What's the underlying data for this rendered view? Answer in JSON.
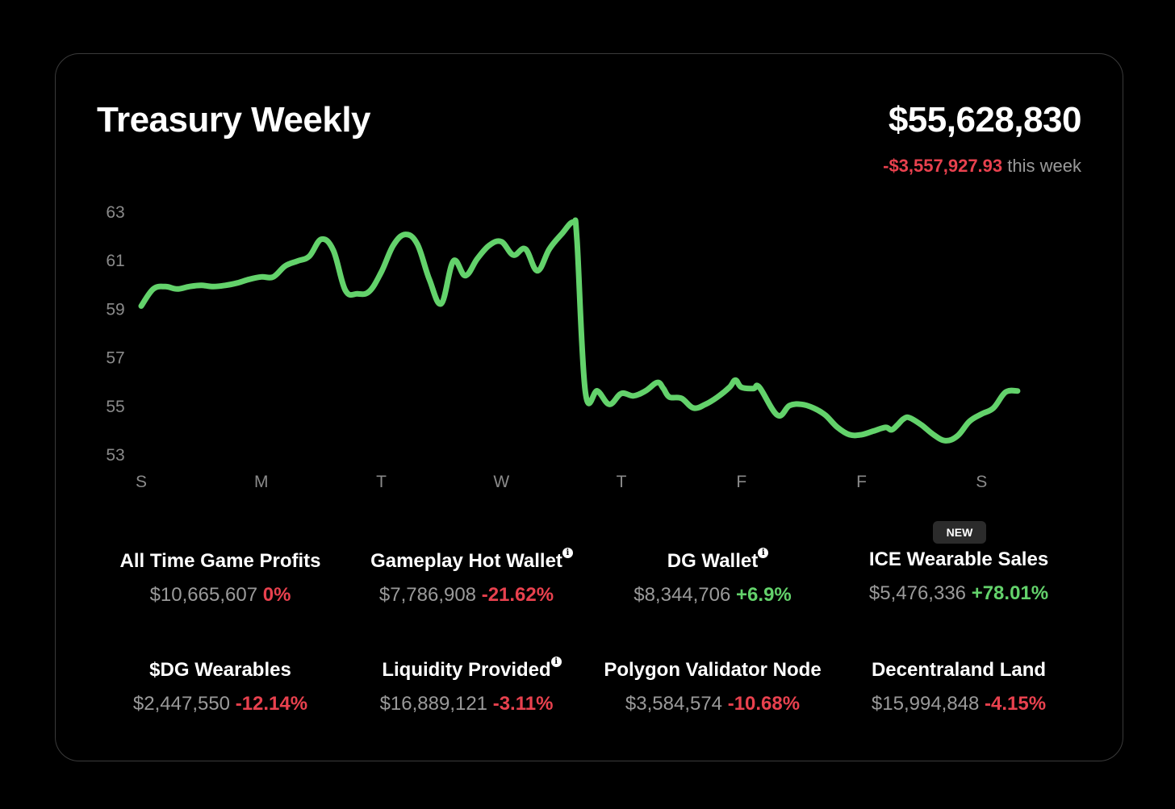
{
  "header": {
    "title": "Treasury Weekly",
    "total": "$55,628,830",
    "change_value": "-$3,557,927.93",
    "change_suffix": "this week"
  },
  "colors": {
    "background": "#000000",
    "line": "#63d26b",
    "negative": "#e8414e",
    "positive": "#63d26b",
    "axis_text": "#8a8a8a"
  },
  "chart_data": {
    "type": "line",
    "title": "Treasury Weekly",
    "xlabel": "",
    "ylabel": "",
    "ylim": [
      53,
      63
    ],
    "x_ticks": [
      "S",
      "M",
      "T",
      "W",
      "T",
      "F",
      "F",
      "S"
    ],
    "y_ticks": [
      63,
      61,
      59,
      57,
      55,
      53
    ],
    "grid": false,
    "legend": "none",
    "series": [
      {
        "values": [
          [
            0.0,
            59.1
          ],
          [
            0.1,
            59.8
          ],
          [
            0.2,
            59.9
          ],
          [
            0.3,
            59.8
          ],
          [
            0.4,
            59.9
          ],
          [
            0.5,
            59.95
          ],
          [
            0.6,
            59.9
          ],
          [
            0.7,
            59.95
          ],
          [
            0.8,
            60.05
          ],
          [
            0.9,
            60.2
          ],
          [
            1.0,
            60.3
          ],
          [
            1.1,
            60.3
          ],
          [
            1.2,
            60.75
          ],
          [
            1.3,
            60.95
          ],
          [
            1.4,
            61.15
          ],
          [
            1.5,
            61.85
          ],
          [
            1.6,
            61.4
          ],
          [
            1.7,
            59.75
          ],
          [
            1.8,
            59.6
          ],
          [
            1.9,
            59.7
          ],
          [
            2.0,
            60.5
          ],
          [
            2.1,
            61.6
          ],
          [
            2.2,
            62.05
          ],
          [
            2.3,
            61.65
          ],
          [
            2.4,
            60.2
          ],
          [
            2.5,
            59.2
          ],
          [
            2.6,
            60.95
          ],
          [
            2.7,
            60.35
          ],
          [
            2.8,
            61.05
          ],
          [
            2.9,
            61.6
          ],
          [
            3.0,
            61.75
          ],
          [
            3.1,
            61.2
          ],
          [
            3.2,
            61.45
          ],
          [
            3.3,
            60.55
          ],
          [
            3.4,
            61.45
          ],
          [
            3.5,
            62.05
          ],
          [
            3.6,
            62.55
          ],
          [
            3.63,
            61.8
          ],
          [
            3.7,
            55.55
          ],
          [
            3.8,
            55.6
          ],
          [
            3.9,
            55.05
          ],
          [
            4.0,
            55.5
          ],
          [
            4.1,
            55.4
          ],
          [
            4.2,
            55.6
          ],
          [
            4.3,
            55.95
          ],
          [
            4.35,
            55.7
          ],
          [
            4.4,
            55.35
          ],
          [
            4.5,
            55.3
          ],
          [
            4.6,
            54.9
          ],
          [
            4.7,
            55.05
          ],
          [
            4.8,
            55.35
          ],
          [
            4.9,
            55.75
          ],
          [
            4.95,
            56.05
          ],
          [
            5.0,
            55.75
          ],
          [
            5.1,
            55.7
          ],
          [
            5.15,
            55.75
          ],
          [
            5.3,
            54.6
          ],
          [
            5.4,
            55.0
          ],
          [
            5.5,
            55.05
          ],
          [
            5.6,
            54.9
          ],
          [
            5.7,
            54.6
          ],
          [
            5.8,
            54.1
          ],
          [
            5.9,
            53.8
          ],
          [
            6.0,
            53.8
          ],
          [
            6.1,
            53.95
          ],
          [
            6.2,
            54.1
          ],
          [
            6.25,
            54.0
          ],
          [
            6.3,
            54.2
          ],
          [
            6.35,
            54.45
          ],
          [
            6.4,
            54.5
          ],
          [
            6.5,
            54.2
          ],
          [
            6.6,
            53.8
          ],
          [
            6.7,
            53.55
          ],
          [
            6.8,
            53.75
          ],
          [
            6.9,
            54.35
          ],
          [
            7.0,
            54.65
          ],
          [
            7.1,
            54.9
          ],
          [
            7.2,
            55.55
          ],
          [
            7.3,
            55.6
          ]
        ]
      }
    ]
  },
  "stats": [
    {
      "label": "All Time Game Profits",
      "amount": "$10,665,607",
      "pct": "0%",
      "sign": "zero",
      "info": false
    },
    {
      "label": "Gameplay Hot Wallet",
      "amount": "$7,786,908",
      "pct": "-21.62%",
      "sign": "neg",
      "info": true
    },
    {
      "label": "DG Wallet",
      "amount": "$8,344,706",
      "pct": "+6.9%",
      "sign": "pos",
      "info": true
    },
    {
      "label": "ICE Wearable Sales",
      "amount": "$5,476,336",
      "pct": "+78.01%",
      "sign": "pos",
      "info": false,
      "badge": "NEW"
    },
    {
      "label": "$DG Wearables",
      "amount": "$2,447,550",
      "pct": "-12.14%",
      "sign": "neg",
      "info": false
    },
    {
      "label": "Liquidity Provided",
      "amount": "$16,889,121",
      "pct": "-3.11%",
      "sign": "neg",
      "info": true
    },
    {
      "label": "Polygon Validator Node",
      "amount": "$3,584,574",
      "pct": "-10.68%",
      "sign": "neg",
      "info": false
    },
    {
      "label": "Decentraland Land",
      "amount": "$15,994,848",
      "pct": "-4.15%",
      "sign": "neg",
      "info": false
    }
  ],
  "info_icon_glyph": "i"
}
